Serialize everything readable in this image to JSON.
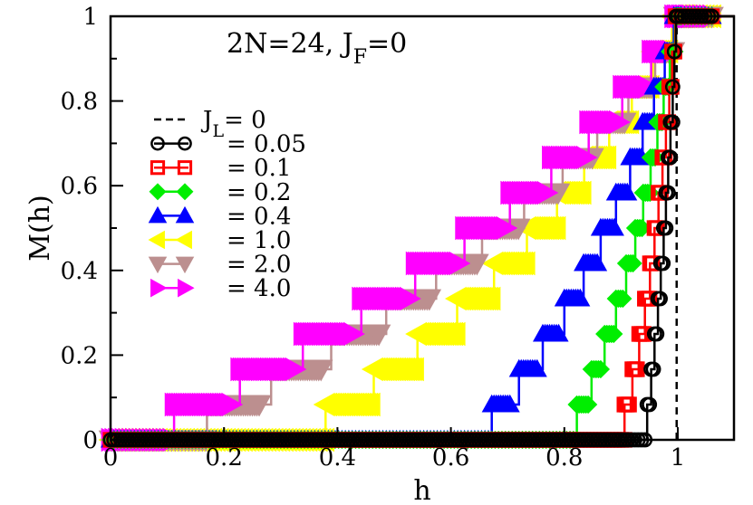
{
  "chart_data": {
    "type": "line",
    "title": "2N=24,  J",
    "title_sub": "F",
    "title_suffix": "=0",
    "xlabel": "h",
    "ylabel": "M(h)",
    "xlim": [
      0,
      1.1
    ],
    "ylim": [
      0,
      1
    ],
    "x_ticks": [
      0,
      0.2,
      0.4,
      0.6,
      0.8,
      1
    ],
    "x_tick_labels": [
      "0",
      "0.2",
      "0.4",
      "0.6",
      "0.8",
      "1"
    ],
    "y_ticks": [
      0,
      0.2,
      0.4,
      0.6,
      0.8,
      1
    ],
    "y_tick_labels": [
      "0",
      "0.2",
      "0.4",
      "0.6",
      "0.8",
      "1"
    ],
    "grid": false,
    "legend_position": "left",
    "series": [
      {
        "name_main": "J",
        "name_sub": "L",
        "name_suffix": "= 0",
        "marker": "none",
        "dashed": true,
        "color": "#000000",
        "steps": [
          0.998
        ],
        "offsets": []
      },
      {
        "name_main": "",
        "name_sub": "",
        "name_suffix": "= 0.05",
        "marker": "circle",
        "dashed": false,
        "color": "#000000",
        "steps": [
          0.946,
          0.953,
          0.959,
          0.965,
          0.97,
          0.975,
          0.979,
          0.983,
          0.987,
          0.991,
          0.994,
          0.997
        ],
        "offsets": [
          0.007,
          0.006,
          0.006,
          0.005,
          0.005,
          0.004,
          0.004,
          0.004,
          0.004,
          0.003,
          0.003,
          0.003
        ]
      },
      {
        "name_main": "",
        "name_sub": "",
        "name_suffix": "= 0.1",
        "marker": "square",
        "dashed": false,
        "color": "#ff0000",
        "steps": [
          0.906,
          0.92,
          0.932,
          0.942,
          0.951,
          0.959,
          0.966,
          0.973,
          0.979,
          0.985,
          0.99,
          0.996
        ],
        "offsets": [
          0.01,
          0.009,
          0.008,
          0.008,
          0.007,
          0.007,
          0.006,
          0.006,
          0.005,
          0.005,
          0.004,
          0.004
        ]
      },
      {
        "name_main": "",
        "name_sub": "",
        "name_suffix": "= 0.2",
        "marker": "diamond",
        "dashed": false,
        "color": "#00ee00",
        "steps": [
          0.822,
          0.848,
          0.871,
          0.891,
          0.909,
          0.925,
          0.939,
          0.952,
          0.964,
          0.975,
          0.986,
          0.995
        ],
        "offsets": [
          0.02,
          0.018,
          0.016,
          0.015,
          0.014,
          0.013,
          0.012,
          0.011,
          0.01,
          0.009,
          0.008,
          0.008
        ]
      },
      {
        "name_main": "",
        "name_sub": "",
        "name_suffix": "= 0.4",
        "marker": "triangle-up",
        "dashed": false,
        "color": "#0000ff",
        "steps": [
          0.672,
          0.72,
          0.762,
          0.8,
          0.834,
          0.864,
          0.891,
          0.916,
          0.938,
          0.958,
          0.977,
          0.993
        ],
        "offsets": [
          0.035,
          0.032,
          0.03,
          0.028,
          0.026,
          0.024,
          0.022,
          0.02,
          0.018,
          0.016,
          0.015,
          0.014
        ]
      },
      {
        "name_main": "",
        "name_sub": "",
        "name_suffix": "= 1.0",
        "marker": "triangle-left",
        "dashed": false,
        "color": "#ffff00",
        "steps": [
          0.379,
          0.464,
          0.541,
          0.611,
          0.676,
          0.734,
          0.787,
          0.835,
          0.879,
          0.919,
          0.956,
          0.99
        ],
        "offsets": [
          0.08,
          0.074,
          0.068,
          0.062,
          0.057,
          0.052,
          0.047,
          0.043,
          0.039,
          0.035,
          0.031,
          0.028
        ]
      },
      {
        "name_main": "",
        "name_sub": "",
        "name_suffix": "= 2.0",
        "marker": "triangle-down",
        "dashed": false,
        "color": "#bc8f8f",
        "steps": [
          0.17,
          0.283,
          0.389,
          0.486,
          0.574,
          0.655,
          0.729,
          0.797,
          0.858,
          0.913,
          0.96,
          0.995
        ],
        "offsets": [
          0.095,
          0.09,
          0.085,
          0.078,
          0.072,
          0.066,
          0.06,
          0.054,
          0.048,
          0.042,
          0.035,
          0.028
        ]
      },
      {
        "name_main": "",
        "name_sub": "",
        "name_suffix": "= 4.0",
        "marker": "triangle-right",
        "dashed": false,
        "color": "#ff00ff",
        "steps": [
          0.112,
          0.228,
          0.339,
          0.442,
          0.537,
          0.624,
          0.704,
          0.777,
          0.843,
          0.902,
          0.953,
          0.993
        ],
        "offsets": [
          0.1,
          0.096,
          0.09,
          0.084,
          0.078,
          0.072,
          0.066,
          0.06,
          0.054,
          0.046,
          0.038,
          0.03
        ]
      }
    ]
  }
}
